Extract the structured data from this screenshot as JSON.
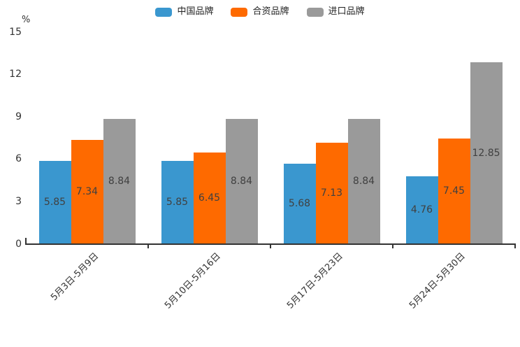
{
  "chart_data": {
    "type": "bar",
    "title": "",
    "xlabel": "",
    "ylabel": "%",
    "categories": [
      "5月3日-5月9日",
      "5月10日-5月16日",
      "5月17日-5月23日",
      "5月24日-5月30日"
    ],
    "series": [
      {
        "name": "中国品牌",
        "color": "#3A97CF",
        "values": [
          5.85,
          5.85,
          5.68,
          4.76
        ]
      },
      {
        "name": "合资品牌",
        "color": "#FE6A00",
        "values": [
          7.34,
          6.45,
          7.13,
          7.45
        ]
      },
      {
        "name": "进口品牌",
        "color": "#9A9A9A",
        "values": [
          8.84,
          8.84,
          8.84,
          12.85
        ]
      }
    ],
    "yticks": [
      0,
      3,
      6,
      9,
      12,
      15
    ],
    "ylim": [
      0,
      15
    ],
    "grid": false,
    "legend_position": "top-center",
    "value_labels": "inside-middle",
    "xlabel_rotation_deg": 45
  },
  "colors": {
    "background": "#ffffff",
    "axis": "#333333",
    "tick_label": "#333333",
    "value_label": "#404040"
  }
}
